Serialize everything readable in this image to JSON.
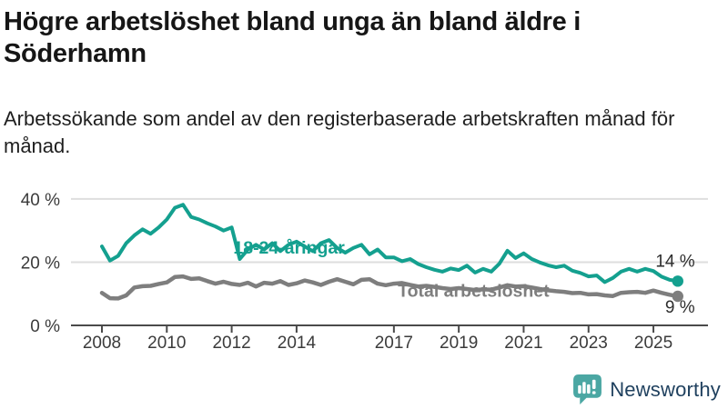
{
  "header": {
    "title": "Högre arbetslöshet bland unga än bland äldre i Söderhamn",
    "subtitle": "Arbetssökande som andel av den registerbaserade arbetskraften månad för månad."
  },
  "chart_data": {
    "type": "line",
    "title": "Högre arbetslöshet bland unga än bland äldre i Söderhamn",
    "subtitle": "Arbetssökande som andel av den registerbaserade arbetskraften månad för månad.",
    "xlabel": "",
    "ylabel": "",
    "x_start": 2008.0,
    "x_step": 0.25,
    "xlim": [
      2008,
      2026
    ],
    "ylim": [
      0,
      44
    ],
    "grid": "horizontal",
    "axis_color": "#4a4a4a",
    "grid_color": "#dedede",
    "tick_label_color": "#3b3b3b",
    "y_ticks": [
      {
        "value": 0,
        "label": "0 %"
      },
      {
        "value": 20,
        "label": "20 %"
      },
      {
        "value": 40,
        "label": "40 %"
      }
    ],
    "x_ticks": [
      {
        "value": 2008,
        "label": "2008"
      },
      {
        "value": 2010,
        "label": "2010"
      },
      {
        "value": 2012,
        "label": "2012"
      },
      {
        "value": 2014,
        "label": "2014"
      },
      {
        "value": 2017,
        "label": "2017"
      },
      {
        "value": 2019,
        "label": "2019"
      },
      {
        "value": 2021,
        "label": "2021"
      },
      {
        "value": 2023,
        "label": "2023"
      },
      {
        "value": 2025,
        "label": "2025"
      }
    ],
    "series": [
      {
        "name": "18-24-åringar",
        "color": "#14a08f",
        "stroke_width": 4,
        "end_dot": true,
        "end_value_label": "14 %",
        "values": [
          25,
          20.5,
          22,
          26,
          28.5,
          30.4,
          29,
          31,
          33.5,
          37.2,
          38.2,
          34.3,
          33.5,
          32.3,
          31.3,
          30,
          31,
          21,
          24,
          25.5,
          24,
          26,
          23.5,
          25.5,
          26.5,
          25,
          23.5,
          26,
          27,
          24.5,
          23,
          24.5,
          25.5,
          22.5,
          24,
          21.5,
          21.5,
          20.3,
          21,
          19.4,
          18.4,
          17.6,
          17,
          18,
          17.5,
          18.9,
          16.7,
          17.9,
          17,
          19.5,
          23.6,
          21.3,
          22.8,
          21,
          19.9,
          19,
          18.4,
          18.9,
          17.3,
          16.6,
          15.5,
          15.8,
          13.7,
          15,
          17,
          17.9,
          17,
          17.9,
          17.2,
          15.4,
          14.4,
          14
        ]
      },
      {
        "name": "Total arbetslöshet",
        "color": "#7e7e7e",
        "stroke_width": 4.5,
        "end_dot": true,
        "end_value_label": "9 %",
        "values": [
          10.3,
          8.6,
          8.5,
          9.5,
          12,
          12.4,
          12.5,
          13.1,
          13.6,
          15.3,
          15.5,
          14.7,
          14.9,
          14,
          13.2,
          13.8,
          13.1,
          12.8,
          13.5,
          12.3,
          13.5,
          13.2,
          14,
          12.8,
          13.3,
          14.2,
          13.6,
          12.8,
          13.8,
          14.6,
          13.8,
          13,
          14.4,
          14.6,
          13.2,
          12.7,
          13.2,
          13.4,
          12.8,
          12.3,
          12.5,
          12.2,
          11.8,
          11.5,
          11.8,
          11.5,
          11.2,
          11.4,
          11.3,
          12,
          12.7,
          12.3,
          12.4,
          12,
          11.5,
          11.1,
          10.8,
          10.6,
          10.2,
          10.3,
          9.8,
          9.9,
          9.5,
          9.3,
          10.3,
          10.5,
          10.6,
          10.3,
          11,
          10.3,
          9.7,
          9.2
        ]
      }
    ],
    "annotations": [
      {
        "text": "18-24-åringar",
        "x": 2012.05,
        "y": 24.8,
        "anchor": "start",
        "bold": true,
        "color": "#14a08f",
        "font_size": 19.5
      },
      {
        "text": "Total arbetslöshet",
        "x": 2017.12,
        "y": 11.0,
        "anchor": "start",
        "bold": true,
        "color": "#7e7e7e",
        "font_size": 19.5
      },
      {
        "text": "14 %",
        "x": 2026.28,
        "y": 20.6,
        "anchor": "end",
        "bold": false,
        "color": "#2d2d2d",
        "font_size": 19
      },
      {
        "text": "9 %",
        "x": 2026.28,
        "y": 6.0,
        "anchor": "end",
        "bold": false,
        "color": "#2d2d2d",
        "font_size": 19
      }
    ],
    "legend_position": "inline-labels"
  },
  "footer": {
    "brand_name": "Newsworthy",
    "logo_icon": "bar-chart-speech-bubble-icon",
    "logo_color": "#4ba7a3",
    "logo_glyph_color": "#ffffff",
    "brand_text_color": "#20415f"
  }
}
